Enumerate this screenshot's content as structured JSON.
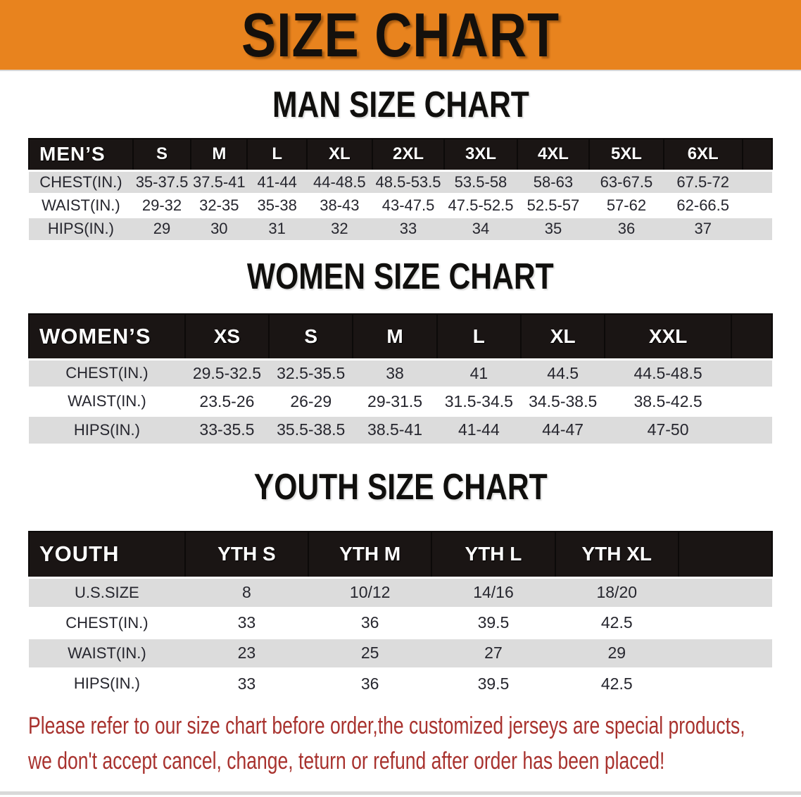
{
  "banner": {
    "title": "SIZE CHART"
  },
  "colors": {
    "banner_bg": "#e8831e",
    "header_band_bg": "#1a1514",
    "row_shaded_bg": "#dcdcdc",
    "disclaimer_red": "#a8322e"
  },
  "sections": [
    {
      "heading": "MAN SIZE CHART",
      "corner_label": "MEN’S",
      "columns": [
        "S",
        "M",
        "L",
        "XL",
        "2XL",
        "3XL",
        "4XL",
        "5XL",
        "6XL"
      ],
      "rows": [
        {
          "label": "CHEST(IN.)",
          "values": [
            "35-37.5",
            "37.5-41",
            "41-44",
            "44-48.5",
            "48.5-53.5",
            "53.5-58",
            "58-63",
            "63-67.5",
            "67.5-72"
          ]
        },
        {
          "label": "WAIST(IN.)",
          "values": [
            "29-32",
            "32-35",
            "35-38",
            "38-43",
            "43-47.5",
            "47.5-52.5",
            "52.5-57",
            "57-62",
            "62-66.5"
          ]
        },
        {
          "label": "HIPS(IN.)",
          "values": [
            "29",
            "30",
            "31",
            "32",
            "33",
            "34",
            "35",
            "36",
            "37"
          ]
        }
      ]
    },
    {
      "heading": "WOMEN SIZE CHART",
      "corner_label": "WOMEN’S",
      "columns": [
        "XS",
        "S",
        "M",
        "L",
        "XL",
        "XXL"
      ],
      "rows": [
        {
          "label": "CHEST(IN.)",
          "values": [
            "29.5-32.5",
            "32.5-35.5",
            "38",
            "41",
            "44.5",
            "44.5-48.5"
          ]
        },
        {
          "label": "WAIST(IN.)",
          "values": [
            "23.5-26",
            "26-29",
            "29-31.5",
            "31.5-34.5",
            "34.5-38.5",
            "38.5-42.5"
          ]
        },
        {
          "label": "HIPS(IN.)",
          "values": [
            "33-35.5",
            "35.5-38.5",
            "38.5-41",
            "41-44",
            "44-47",
            "47-50"
          ]
        }
      ]
    },
    {
      "heading": "YOUTH SIZE CHART",
      "corner_label": "YOUTH",
      "columns": [
        "YTH S",
        "YTH M",
        "YTH L",
        "YTH XL"
      ],
      "rows": [
        {
          "label": "U.S.SIZE",
          "values": [
            "8",
            "10/12",
            "14/16",
            "18/20"
          ]
        },
        {
          "label": "CHEST(IN.)",
          "values": [
            "33",
            "36",
            "39.5",
            "42.5"
          ]
        },
        {
          "label": "WAIST(IN.)",
          "values": [
            "23",
            "25",
            "27",
            "29"
          ]
        },
        {
          "label": "HIPS(IN.)",
          "values": [
            "33",
            "36",
            "39.5",
            "42.5"
          ]
        }
      ]
    }
  ],
  "disclaimer": {
    "line1": "Please refer to our size chart before order,the customized jerseys are special products,",
    "line2": "we don't accept cancel, change, teturn or refund after order has been placed!"
  }
}
